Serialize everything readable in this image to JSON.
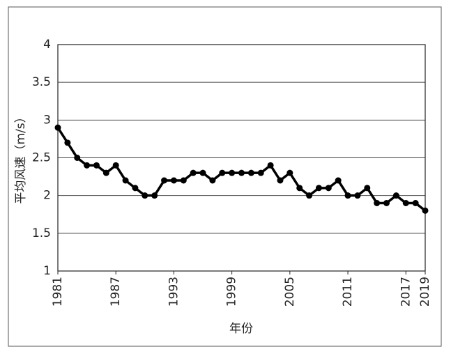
{
  "chart_data": {
    "type": "line",
    "x": [
      1981,
      1982,
      1983,
      1984,
      1985,
      1986,
      1987,
      1988,
      1989,
      1990,
      1991,
      1992,
      1993,
      1994,
      1995,
      1996,
      1997,
      1998,
      1999,
      2000,
      2001,
      2002,
      2003,
      2004,
      2005,
      2006,
      2007,
      2008,
      2009,
      2010,
      2011,
      2012,
      2013,
      2014,
      2015,
      2016,
      2017,
      2018,
      2019
    ],
    "values": [
      2.9,
      2.7,
      2.5,
      2.4,
      2.4,
      2.3,
      2.4,
      2.2,
      2.1,
      2.0,
      2.0,
      2.2,
      2.2,
      2.2,
      2.3,
      2.3,
      2.2,
      2.3,
      2.3,
      2.3,
      2.3,
      2.3,
      2.4,
      2.2,
      2.3,
      2.1,
      2.0,
      2.1,
      2.1,
      2.2,
      2.0,
      2.0,
      2.1,
      1.9,
      1.9,
      2.0,
      1.9,
      1.9,
      1.8
    ],
    "color": "#000000",
    "xlim": [
      1981,
      2019
    ],
    "xticks": [
      1981,
      1987,
      1993,
      1999,
      2005,
      2011,
      2017,
      2019
    ],
    "ylim": [
      1,
      4
    ],
    "yticks": [
      1,
      1.5,
      2,
      2.5,
      3,
      3.5,
      4
    ],
    "grid": true,
    "xlabel": "年份",
    "ylabel": "平均风速（m/s）"
  }
}
